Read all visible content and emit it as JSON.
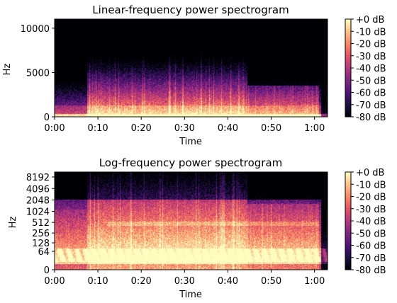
{
  "chart_data": [
    {
      "type": "heatmap",
      "title": "Linear-frequency power spectrogram",
      "xlabel": "Time",
      "ylabel": "Hz",
      "x_scale": "linear",
      "y_scale": "linear",
      "xlim": [
        0,
        63
      ],
      "ylim": [
        0,
        11025
      ],
      "xticks": [
        0,
        10,
        20,
        30,
        40,
        50,
        60
      ],
      "xtick_labels": [
        "0:00",
        "0:10",
        "0:20",
        "0:30",
        "0:40",
        "0:50",
        "1:00"
      ],
      "yticks": [
        0,
        5000,
        10000
      ],
      "ytick_labels": [
        "0",
        "5000",
        "10000"
      ],
      "colormap": "magma",
      "colorbar": {
        "range_db": [
          -80,
          0
        ],
        "ticks": [
          0,
          -10,
          -20,
          -30,
          -40,
          -50,
          -60,
          -70,
          -80
        ],
        "tick_labels": [
          "+0 dB",
          "-10 dB",
          "-20 dB",
          "-30 dB",
          "-40 dB",
          "-50 dB",
          "-60 dB",
          "-70 dB",
          "-80 dB"
        ]
      }
    },
    {
      "type": "heatmap",
      "title": "Log-frequency power spectrogram",
      "xlabel": "Time",
      "ylabel": "Hz",
      "x_scale": "linear",
      "y_scale": "symlog",
      "xlim": [
        0,
        63
      ],
      "ylim": [
        0,
        11025
      ],
      "xticks": [
        0,
        10,
        20,
        30,
        40,
        50,
        60
      ],
      "xtick_labels": [
        "0:00",
        "0:10",
        "0:20",
        "0:30",
        "0:40",
        "0:50",
        "1:00"
      ],
      "yticks": [
        0,
        64,
        128,
        256,
        512,
        1024,
        2048,
        4096,
        8192
      ],
      "ytick_labels": [
        "0",
        "64",
        "128",
        "256",
        "512",
        "1024",
        "2048",
        "4096",
        "8192"
      ],
      "colormap": "magma",
      "colorbar": {
        "range_db": [
          -80,
          0
        ],
        "ticks": [
          0,
          -10,
          -20,
          -30,
          -40,
          -50,
          -60,
          -70,
          -80
        ],
        "tick_labels": [
          "+0 dB",
          "-10 dB",
          "-20 dB",
          "-30 dB",
          "-40 dB",
          "-50 dB",
          "-60 dB",
          "-70 dB",
          "-80 dB"
        ]
      }
    }
  ]
}
